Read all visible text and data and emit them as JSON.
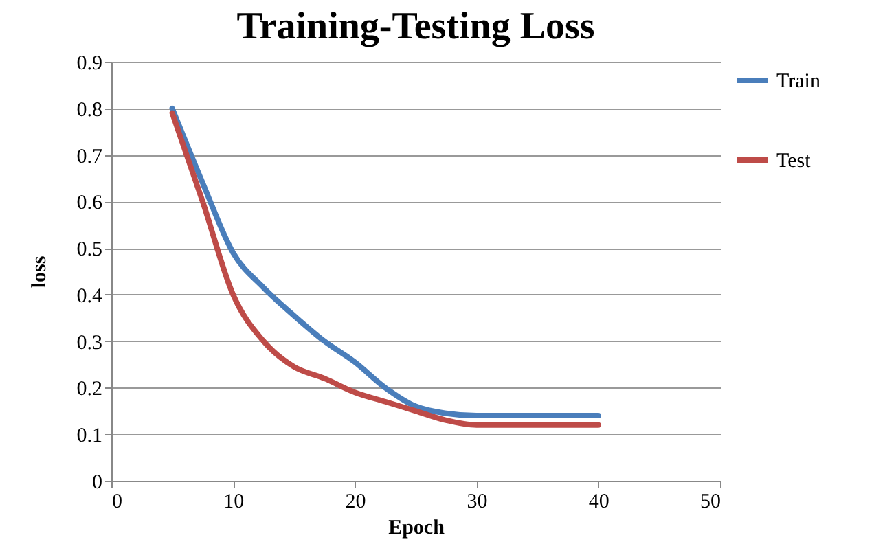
{
  "chart_data": {
    "type": "line",
    "title": "Training-Testing Loss",
    "xlabel": "Epoch",
    "ylabel": "loss",
    "xlim": [
      0,
      50
    ],
    "xticks": [
      0,
      10,
      20,
      30,
      40,
      50
    ],
    "ylim": [
      0,
      0.9
    ],
    "yticks": [
      0,
      0.1,
      0.2,
      0.3,
      0.4,
      0.5,
      0.6,
      0.7,
      0.8,
      0.9
    ],
    "grid": "y",
    "legend": "right",
    "marker": "none",
    "line_style": "solid",
    "series": [
      {
        "name": "Train",
        "color": "#4a7ebb",
        "x": [
          5,
          7.5,
          10,
          12.5,
          15,
          17.5,
          20,
          22.5,
          25,
          27.5,
          30,
          35,
          40
        ],
        "values": [
          0.8,
          0.64,
          0.49,
          0.415,
          0.355,
          0.3,
          0.255,
          0.2,
          0.16,
          0.145,
          0.14,
          0.14,
          0.14
        ]
      },
      {
        "name": "Test",
        "color": "#be4b48",
        "x": [
          5,
          7.5,
          10,
          12.5,
          15,
          17.5,
          20,
          22.5,
          25,
          27.5,
          30,
          35,
          40
        ],
        "values": [
          0.79,
          0.6,
          0.4,
          0.3,
          0.245,
          0.22,
          0.19,
          0.17,
          0.15,
          0.13,
          0.12,
          0.12,
          0.12
        ]
      }
    ]
  }
}
